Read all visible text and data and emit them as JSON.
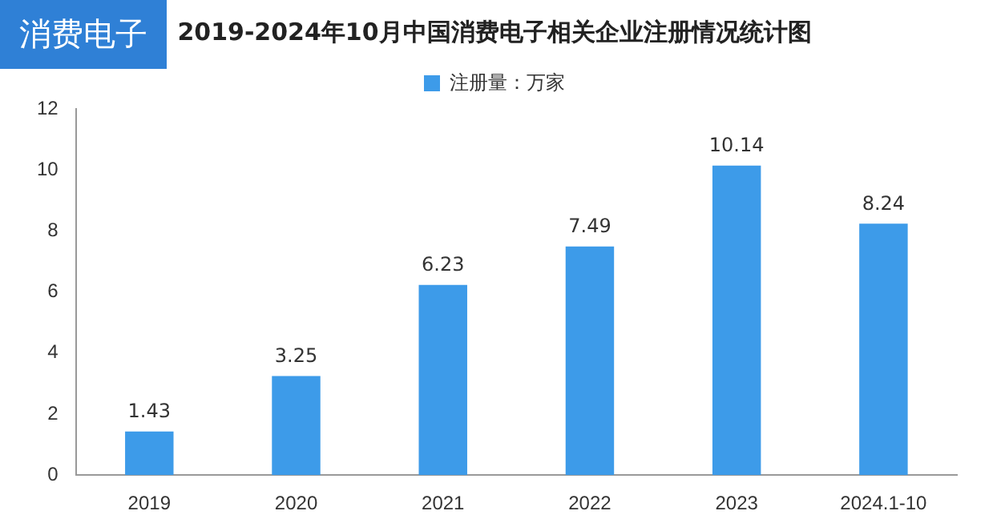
{
  "chart_data": {
    "type": "bar",
    "title": "2019-2024年10月中国消费电子相关企业注册情况统计图",
    "categories": [
      "2019",
      "2020",
      "2021",
      "2022",
      "2023",
      "2024.1-10"
    ],
    "series": [
      {
        "name": "注册量：万家",
        "color": "#3d9be9",
        "values": [
          1.43,
          3.25,
          6.23,
          7.49,
          10.14,
          8.24
        ]
      }
    ],
    "ylim": [
      0,
      12
    ],
    "yticks": [
      0,
      2,
      4,
      6,
      8,
      10,
      12
    ],
    "grid": false,
    "legend": "top",
    "data_labels": true,
    "annotations": [
      "消费电子"
    ]
  }
}
